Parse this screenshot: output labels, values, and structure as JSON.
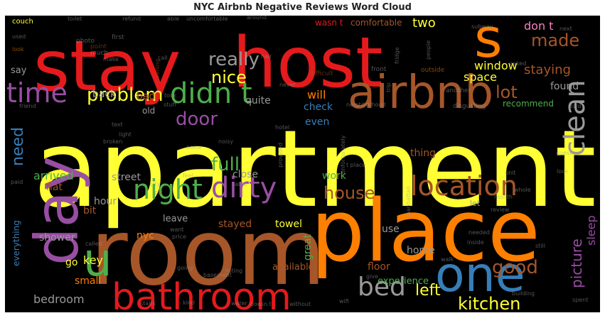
{
  "title": "NYC Airbnb Negative Reviews Word Cloud",
  "palette": {
    "red": "#e41a1c",
    "blue": "#377eb8",
    "green": "#4daf4a",
    "purple": "#984ea3",
    "orange": "#ff7f00",
    "yellow": "#ffff33",
    "brown": "#a65628",
    "pink": "#f781bf",
    "gray": "#999999"
  },
  "words": [
    {
      "text": "apartment",
      "color": "yellow"
    },
    {
      "text": "room",
      "color": "brown"
    },
    {
      "text": "place",
      "color": "orange"
    },
    {
      "text": "stay",
      "color": "red"
    },
    {
      "text": "host",
      "color": "red"
    },
    {
      "text": "s",
      "color": "orange"
    },
    {
      "text": "airbnb",
      "color": "brown"
    },
    {
      "text": "day",
      "color": "purple"
    },
    {
      "text": "u",
      "color": "green"
    },
    {
      "text": "one",
      "color": "blue"
    },
    {
      "text": "bathroom",
      "color": "red"
    },
    {
      "text": "clean",
      "color": "gray"
    },
    {
      "text": "didn t",
      "color": "green"
    },
    {
      "text": "time",
      "color": "purple"
    },
    {
      "text": "night",
      "color": "green"
    },
    {
      "text": "dirty",
      "color": "purple"
    },
    {
      "text": "location",
      "color": "brown"
    },
    {
      "text": "bed",
      "color": "gray"
    },
    {
      "text": "really",
      "color": "gray"
    },
    {
      "text": "nice",
      "color": "yellow"
    },
    {
      "text": "problem",
      "color": "yellow"
    },
    {
      "text": "made",
      "color": "brown"
    },
    {
      "text": "don t",
      "color": "pink"
    },
    {
      "text": "wasn t",
      "color": "red"
    },
    {
      "text": "comfortable",
      "color": "brown"
    },
    {
      "text": "two",
      "color": "yellow"
    },
    {
      "text": "window",
      "color": "yellow"
    },
    {
      "text": "space",
      "color": "yellow"
    },
    {
      "text": "staying",
      "color": "brown"
    },
    {
      "text": "lot",
      "color": "brown"
    },
    {
      "text": "door",
      "color": "purple"
    },
    {
      "text": "full",
      "color": "green"
    },
    {
      "text": "need",
      "color": "blue"
    },
    {
      "text": "house",
      "color": "brown"
    },
    {
      "text": "good",
      "color": "brown"
    },
    {
      "text": "left",
      "color": "yellow"
    },
    {
      "text": "kitchen",
      "color": "yellow"
    },
    {
      "text": "picture",
      "color": "purple"
    },
    {
      "text": "sleep",
      "color": "purple"
    },
    {
      "text": "found",
      "color": "gray"
    },
    {
      "text": "recommend",
      "color": "green"
    },
    {
      "text": "back",
      "color": "gray"
    },
    {
      "text": "bad",
      "color": "brown"
    },
    {
      "text": "quite",
      "color": "gray"
    },
    {
      "text": "check",
      "color": "blue"
    },
    {
      "text": "will",
      "color": "orange"
    },
    {
      "text": "even",
      "color": "blue"
    },
    {
      "text": "thing",
      "color": "brown"
    },
    {
      "text": "work",
      "color": "green"
    },
    {
      "text": "arrived",
      "color": "green"
    },
    {
      "text": "flat",
      "color": "brown"
    },
    {
      "text": "street",
      "color": "gray"
    },
    {
      "text": "close",
      "color": "gray"
    },
    {
      "text": "hour",
      "color": "gray"
    },
    {
      "text": "bit",
      "color": "brown"
    },
    {
      "text": "stayed",
      "color": "brown"
    },
    {
      "text": "towel",
      "color": "yellow"
    },
    {
      "text": "shower",
      "color": "gray"
    },
    {
      "text": "everything",
      "color": "blue"
    },
    {
      "text": "key",
      "color": "yellow"
    },
    {
      "text": "nyc",
      "color": "orange"
    },
    {
      "text": "available",
      "color": "brown"
    },
    {
      "text": "great",
      "color": "green"
    },
    {
      "text": "home",
      "color": "gray"
    },
    {
      "text": "use",
      "color": "gray"
    },
    {
      "text": "floor",
      "color": "brown"
    },
    {
      "text": "experience",
      "color": "green"
    },
    {
      "text": "bedroom",
      "color": "gray"
    },
    {
      "text": "small",
      "color": "orange"
    },
    {
      "text": "go",
      "color": "yellow"
    },
    {
      "text": "say",
      "color": "gray"
    },
    {
      "text": "old",
      "color": "gray"
    },
    {
      "text": "leave",
      "color": "gray"
    },
    {
      "text": "let",
      "color": "gray"
    },
    {
      "text": "neighborhood",
      "color": "gray"
    },
    {
      "text": "disgusting",
      "color": "gray"
    },
    {
      "text": "another",
      "color": "gray"
    },
    {
      "text": "front",
      "color": "gray"
    },
    {
      "text": "outside",
      "color": "orange"
    },
    {
      "text": "difficult",
      "color": "brown"
    },
    {
      "text": "asked",
      "color": "gray"
    },
    {
      "text": "cleaning",
      "color": "brown"
    },
    {
      "text": "point",
      "color": "brown"
    },
    {
      "text": "photo",
      "color": "gray"
    },
    {
      "text": "first",
      "color": "gray"
    },
    {
      "text": "much",
      "color": "gray"
    },
    {
      "text": "couch",
      "color": "yellow"
    },
    {
      "text": "toilet",
      "color": "gray"
    },
    {
      "text": "refund",
      "color": "gray"
    },
    {
      "text": "able",
      "color": "gray"
    },
    {
      "text": "uncomfortable",
      "color": "gray"
    },
    {
      "text": "around",
      "color": "gray"
    },
    {
      "text": "used",
      "color": "gray"
    },
    {
      "text": "look",
      "color": "orange"
    },
    {
      "text": "subway",
      "color": "gray"
    },
    {
      "text": "next",
      "color": "gray"
    },
    {
      "text": "people",
      "color": "gray"
    },
    {
      "text": "fridge",
      "color": "gray"
    },
    {
      "text": "friend",
      "color": "gray"
    },
    {
      "text": "told",
      "color": "gray"
    },
    {
      "text": "guest",
      "color": "gray"
    },
    {
      "text": "unit",
      "color": "gray"
    },
    {
      "text": "lock",
      "color": "gray"
    },
    {
      "text": "city",
      "color": "gray"
    },
    {
      "text": "cat",
      "color": "brown"
    },
    {
      "text": "noise",
      "color": "gray"
    },
    {
      "text": "noisy",
      "color": "gray"
    },
    {
      "text": "hotel",
      "color": "gray"
    },
    {
      "text": "text",
      "color": "gray"
    },
    {
      "text": "feel",
      "color": "gray"
    },
    {
      "text": "called",
      "color": "gray"
    },
    {
      "text": "price",
      "color": "gray"
    },
    {
      "text": "want",
      "color": "gray"
    },
    {
      "text": "month",
      "color": "gray"
    },
    {
      "text": "review",
      "color": "gray"
    },
    {
      "text": "needed",
      "color": "gray"
    },
    {
      "text": "inside",
      "color": "gray"
    },
    {
      "text": "still",
      "color": "gray"
    },
    {
      "text": "whole",
      "color": "gray"
    },
    {
      "text": "listing",
      "color": "gray"
    },
    {
      "text": "going",
      "color": "gray"
    },
    {
      "text": "basement",
      "color": "gray"
    },
    {
      "text": "give",
      "color": "gray"
    },
    {
      "text": "walk",
      "color": "gray"
    },
    {
      "text": "building",
      "color": "gray"
    },
    {
      "text": "stairs",
      "color": "gray"
    },
    {
      "text": "kind",
      "color": "gray"
    },
    {
      "text": "water",
      "color": "gray"
    },
    {
      "text": "doesn t",
      "color": "gray"
    },
    {
      "text": "without",
      "color": "gray"
    },
    {
      "text": "spent",
      "color": "gray"
    },
    {
      "text": "wifi",
      "color": "gray"
    },
    {
      "text": "t place",
      "color": "gray"
    },
    {
      "text": "unfortunately",
      "color": "gray"
    },
    {
      "text": "provided",
      "color": "gray"
    },
    {
      "text": "manhattan",
      "color": "gray"
    },
    {
      "text": "paid",
      "color": "gray"
    },
    {
      "text": "table",
      "color": "gray"
    },
    {
      "text": "stuff",
      "color": "gray"
    },
    {
      "text": "took",
      "color": "gray"
    },
    {
      "text": "never",
      "color": "gray"
    },
    {
      "text": "broken",
      "color": "gray"
    },
    {
      "text": "light",
      "color": "gray"
    },
    {
      "text": "hair",
      "color": "gray"
    },
    {
      "text": "make",
      "color": "gray"
    },
    {
      "text": "call",
      "color": "gray"
    },
    {
      "text": "trip",
      "color": "gray"
    }
  ]
}
